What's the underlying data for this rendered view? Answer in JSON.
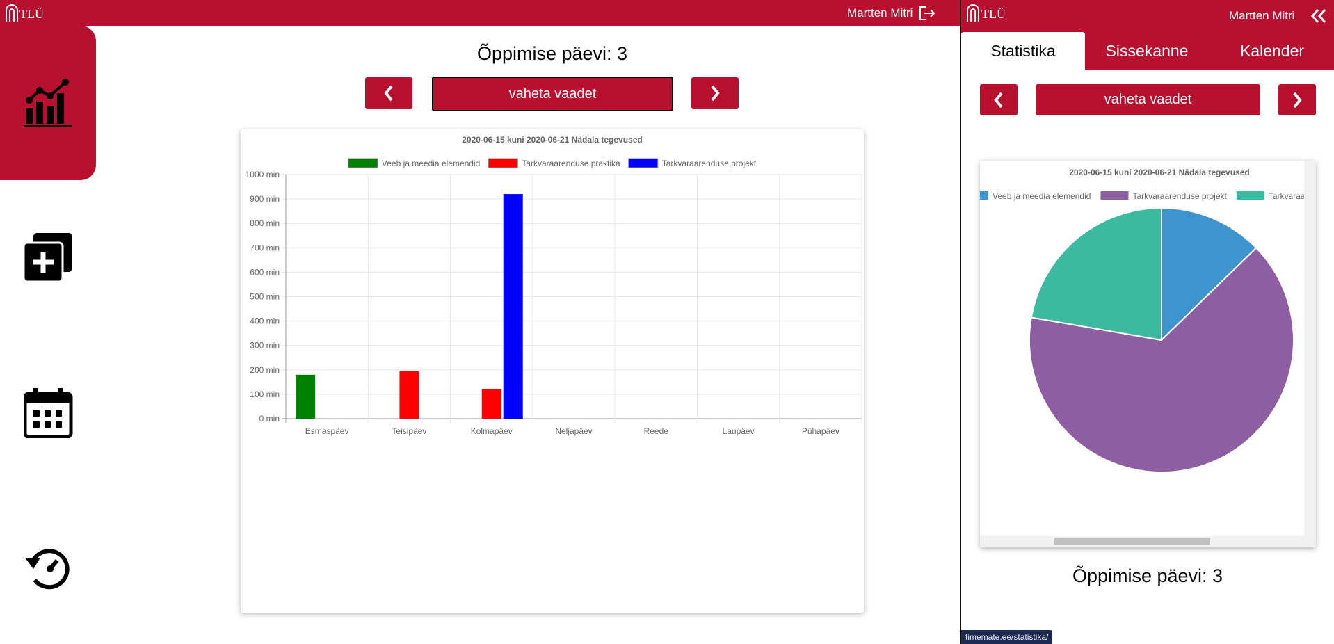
{
  "header": {
    "logo": "TLÜ",
    "user": "Martten Mitri"
  },
  "main": {
    "title": "Õppimise päevi: 3",
    "button": "vaheta vaadet"
  },
  "chart_data": [
    {
      "type": "bar",
      "title": "2020-06-15 kuni 2020-06-21 Nädala tegevused",
      "categories": [
        "Esmaspäev",
        "Teisipäev",
        "Kolmapäev",
        "Neljapäev",
        "Reede",
        "Laupäev",
        "Pühapäev"
      ],
      "series": [
        {
          "name": "Veeb ja meedia elemendid",
          "color": "#008000",
          "values": [
            180,
            0,
            0,
            0,
            0,
            0,
            0
          ]
        },
        {
          "name": "Tarkvaraarenduse praktika",
          "color": "#ff0000",
          "values": [
            0,
            195,
            120,
            0,
            0,
            0,
            0
          ]
        },
        {
          "name": "Tarkvaraarenduse projekt",
          "color": "#0000ff",
          "values": [
            0,
            0,
            920,
            0,
            0,
            0,
            0
          ]
        }
      ],
      "ylim": [
        0,
        1000
      ],
      "yticks": [
        {
          "value": 0,
          "label": "0 min"
        },
        {
          "value": 100,
          "label": "100 min"
        },
        {
          "value": 200,
          "label": "200 min"
        },
        {
          "value": 300,
          "label": "300 min"
        },
        {
          "value": 400,
          "label": "400 min"
        },
        {
          "value": 500,
          "label": "500 min"
        },
        {
          "value": 600,
          "label": "600 min"
        },
        {
          "value": 700,
          "label": "700 min"
        },
        {
          "value": 800,
          "label": "800 min"
        },
        {
          "value": 900,
          "label": "900 min"
        },
        {
          "value": 1000,
          "label": "1000 min"
        }
      ],
      "grid": true
    },
    {
      "type": "pie",
      "title": "2020-06-15 kuni 2020-06-21 Nädala tegevused",
      "labels": [
        "Veeb ja meedia elemendid",
        "Tarkvaraarenduse projekt",
        "Tarkvaraarenduse praktika"
      ],
      "values": [
        180,
        920,
        315
      ],
      "colors": [
        "#3e95cd",
        "#8e5ea2",
        "#3cba9f"
      ]
    }
  ],
  "panel": {
    "logo": "TLÜ",
    "user": "Martten Mitri",
    "tabs": [
      "Statistika",
      "Sissekanne",
      "Kalender"
    ],
    "button": "vaheta vaadet",
    "title": "Õppimise päevi: 3"
  },
  "status": "timemate.ee/statistika/"
}
